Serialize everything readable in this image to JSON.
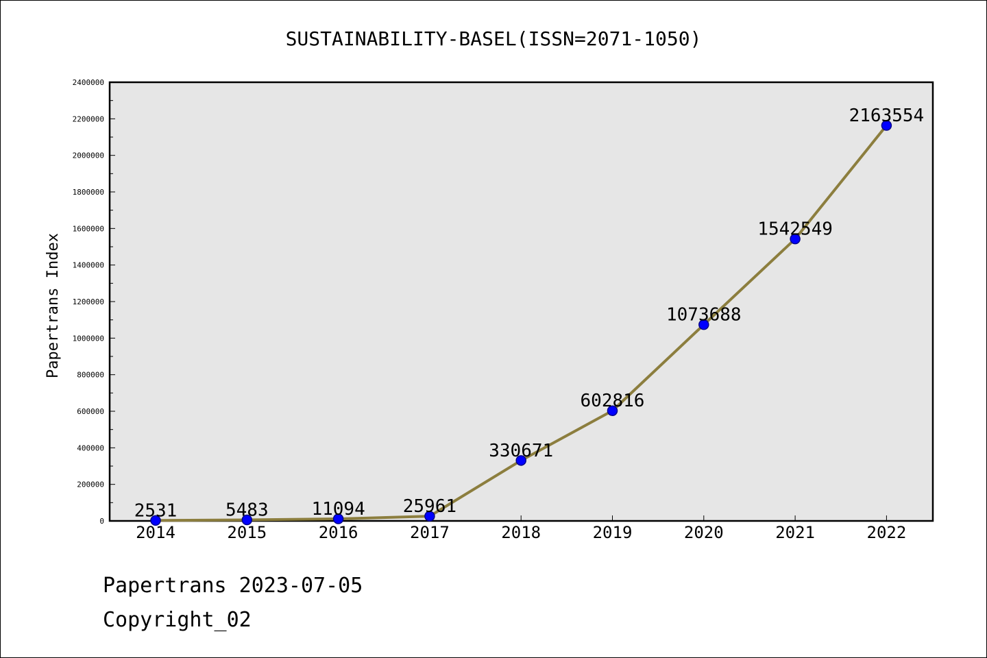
{
  "chart_data": {
    "type": "line",
    "title": "SUSTAINABILITY-BASEL(ISSN=2071-1050)",
    "xlabel": "",
    "ylabel": "Papertrans Index",
    "categories": [
      "2014",
      "2015",
      "2016",
      "2017",
      "2018",
      "2019",
      "2020",
      "2021",
      "2022"
    ],
    "values": [
      2531,
      5483,
      11094,
      25961,
      330671,
      602816,
      1073688,
      1542549,
      2163554
    ],
    "data_labels": [
      "2531",
      "5483",
      "11094",
      "25961",
      "330671",
      "602816",
      "1073688",
      "1542549",
      "2163554"
    ],
    "ylim": [
      0,
      2400000
    ],
    "yticks": [
      0,
      200000,
      400000,
      600000,
      800000,
      1000000,
      1200000,
      1400000,
      1600000,
      1800000,
      2000000,
      2200000,
      2400000
    ],
    "ytick_labels": [
      "0",
      "200000",
      "400000",
      "600000",
      "800000",
      "1000000",
      "1200000",
      "1400000",
      "1600000",
      "1800000",
      "2000000",
      "2200000",
      "2400000"
    ],
    "grid": false,
    "colors": {
      "plot_background": "#e6e6e6",
      "line": "#8c7e3e",
      "marker_fill": "#0000ff",
      "marker_edge": "#00008b"
    }
  },
  "footer": {
    "line1": "Papertrans 2023-07-05",
    "line2": "Copyright_02"
  }
}
